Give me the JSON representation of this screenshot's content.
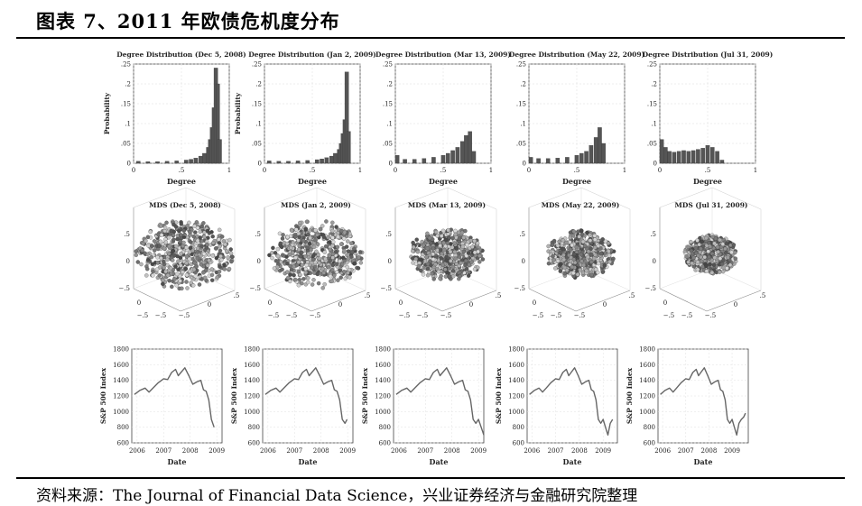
{
  "figure": {
    "title": "图表 7、2011 年欧债危机度分布",
    "source": "资料来源：The Journal of Financial Data Science，兴业证券经济与金融研究院整理"
  },
  "chart_data": [
    {
      "type": "bar",
      "title": "Degree Distribution (Dec 5, 2008)",
      "xlabel": "Degree",
      "ylabel": "Probability",
      "xlim": [
        0,
        1
      ],
      "ylim": [
        0,
        0.25
      ],
      "xticks": [
        0,
        0.5,
        1
      ],
      "yticks": [
        0,
        0.05,
        0.1,
        0.15,
        0.2,
        0.25
      ],
      "x": [
        0.05,
        0.15,
        0.25,
        0.35,
        0.45,
        0.55,
        0.6,
        0.65,
        0.7,
        0.74,
        0.78,
        0.8,
        0.82,
        0.84,
        0.86,
        0.88,
        0.9
      ],
      "values": [
        0.005,
        0.004,
        0.004,
        0.005,
        0.006,
        0.008,
        0.01,
        0.013,
        0.018,
        0.025,
        0.04,
        0.06,
        0.09,
        0.14,
        0.24,
        0.2,
        0.06
      ]
    },
    {
      "type": "bar",
      "title": "Degree Distribution (Jan 2, 2009)",
      "xlabel": "Degree",
      "ylabel": "Probability",
      "xlim": [
        0,
        1
      ],
      "ylim": [
        0,
        0.25
      ],
      "xticks": [
        0,
        0.5,
        1
      ],
      "yticks": [
        0,
        0.05,
        0.1,
        0.15,
        0.2,
        0.25
      ],
      "x": [
        0.05,
        0.15,
        0.25,
        0.35,
        0.45,
        0.55,
        0.6,
        0.65,
        0.7,
        0.74,
        0.78,
        0.8,
        0.82,
        0.84,
        0.86,
        0.88
      ],
      "values": [
        0.006,
        0.005,
        0.005,
        0.006,
        0.007,
        0.009,
        0.011,
        0.014,
        0.018,
        0.025,
        0.035,
        0.05,
        0.075,
        0.11,
        0.23,
        0.08
      ]
    },
    {
      "type": "bar",
      "title": "Degree Distribution (Mar 13, 2009)",
      "xlabel": "Degree",
      "ylabel": "",
      "xlim": [
        0,
        1
      ],
      "ylim": [
        0,
        0.25
      ],
      "xticks": [
        0,
        0.5,
        1
      ],
      "yticks": [
        0,
        0.05,
        0.1,
        0.15,
        0.2,
        0.25
      ],
      "x": [
        0.02,
        0.1,
        0.2,
        0.3,
        0.4,
        0.5,
        0.55,
        0.6,
        0.65,
        0.7,
        0.74,
        0.78,
        0.82
      ],
      "values": [
        0.02,
        0.01,
        0.01,
        0.012,
        0.015,
        0.02,
        0.025,
        0.032,
        0.04,
        0.055,
        0.07,
        0.08,
        0.03
      ]
    },
    {
      "type": "bar",
      "title": "Degree Distribution (May 22, 2009)",
      "xlabel": "Degree",
      "ylabel": "",
      "xlim": [
        0,
        1
      ],
      "ylim": [
        0,
        0.25
      ],
      "xticks": [
        0,
        0.5,
        1
      ],
      "yticks": [
        0,
        0.05,
        0.1,
        0.15,
        0.2,
        0.25
      ],
      "x": [
        0.02,
        0.1,
        0.2,
        0.3,
        0.4,
        0.5,
        0.55,
        0.6,
        0.65,
        0.7,
        0.74,
        0.78
      ],
      "values": [
        0.015,
        0.012,
        0.012,
        0.013,
        0.015,
        0.02,
        0.025,
        0.03,
        0.045,
        0.065,
        0.09,
        0.05
      ]
    },
    {
      "type": "bar",
      "title": "Degree Distribution (Jul 31, 2009)",
      "xlabel": "Degree",
      "ylabel": "",
      "xlim": [
        0,
        1
      ],
      "ylim": [
        0,
        0.25
      ],
      "xticks": [
        0,
        0.5,
        1
      ],
      "yticks": [
        0,
        0.05,
        0.1,
        0.15,
        0.2,
        0.25
      ],
      "x": [
        0.02,
        0.06,
        0.1,
        0.15,
        0.2,
        0.25,
        0.3,
        0.35,
        0.4,
        0.45,
        0.5,
        0.55,
        0.6,
        0.65
      ],
      "values": [
        0.06,
        0.04,
        0.03,
        0.028,
        0.03,
        0.032,
        0.03,
        0.032,
        0.035,
        0.038,
        0.045,
        0.04,
        0.03,
        0.008
      ]
    },
    {
      "type": "scatter",
      "title": "MDS (Dec 5, 2008)",
      "xticks": [
        -0.5,
        0,
        0.5
      ],
      "yticks": [
        -0.5,
        0,
        0.5
      ],
      "zticks": [
        -0.5,
        0,
        0.5
      ],
      "radius": 0.95
    },
    {
      "type": "scatter",
      "title": "MDS (Jan 2, 2009)",
      "xticks": [
        -0.5,
        0,
        0.5
      ],
      "yticks": [
        -0.5,
        0,
        0.5
      ],
      "zticks": [
        -0.5,
        0,
        0.5
      ],
      "radius": 0.92
    },
    {
      "type": "scatter",
      "title": "MDS (Mar 13, 2009)",
      "xticks": [
        -0.5,
        0,
        0.5
      ],
      "yticks": [
        -0.5,
        0,
        0.5
      ],
      "zticks": [
        -0.5,
        0,
        0.5
      ],
      "radius": 0.72
    },
    {
      "type": "scatter",
      "title": "MDS (May 22, 2009)",
      "xticks": [
        -0.5,
        0,
        0.5
      ],
      "yticks": [
        -0.5,
        0,
        0.5
      ],
      "zticks": [
        -0.5,
        0,
        0.5
      ],
      "radius": 0.66
    },
    {
      "type": "scatter",
      "title": "MDS (Jul 31, 2009)",
      "xticks": [
        -0.5,
        0,
        0.5
      ],
      "yticks": [
        -0.5,
        0,
        0.5
      ],
      "zticks": [
        -0.5,
        0,
        0.5
      ],
      "radius": 0.52
    },
    {
      "type": "line",
      "title": "",
      "xlabel": "Date",
      "ylabel": "S&P 500 Index",
      "xlim": [
        2005.8,
        2009.2
      ],
      "ylim": [
        600,
        1800
      ],
      "xticks": [
        2006,
        2007,
        2008,
        2009
      ],
      "yticks": [
        600,
        800,
        1000,
        1200,
        1400,
        1600,
        1800
      ],
      "x": [
        2005.9,
        2006.1,
        2006.3,
        2006.45,
        2006.6,
        2006.8,
        2007.0,
        2007.15,
        2007.3,
        2007.45,
        2007.55,
        2007.65,
        2007.8,
        2007.95,
        2008.1,
        2008.25,
        2008.4,
        2008.5,
        2008.6,
        2008.7,
        2008.8,
        2008.9
      ],
      "values": [
        1220,
        1270,
        1300,
        1250,
        1300,
        1370,
        1420,
        1410,
        1500,
        1540,
        1460,
        1500,
        1560,
        1460,
        1350,
        1380,
        1400,
        1280,
        1260,
        1150,
        900,
        800
      ]
    },
    {
      "type": "line",
      "title": "",
      "xlabel": "Date",
      "ylabel": "S&P 500 Index",
      "xlim": [
        2005.8,
        2009.2
      ],
      "ylim": [
        600,
        1800
      ],
      "xticks": [
        2006,
        2007,
        2008,
        2009
      ],
      "yticks": [
        600,
        800,
        1000,
        1200,
        1400,
        1600,
        1800
      ],
      "x": [
        2005.9,
        2006.1,
        2006.3,
        2006.45,
        2006.6,
        2006.8,
        2007.0,
        2007.15,
        2007.3,
        2007.45,
        2007.55,
        2007.65,
        2007.8,
        2007.95,
        2008.1,
        2008.25,
        2008.4,
        2008.5,
        2008.6,
        2008.7,
        2008.8,
        2008.9,
        2008.98
      ],
      "values": [
        1220,
        1270,
        1300,
        1250,
        1300,
        1370,
        1420,
        1410,
        1500,
        1540,
        1460,
        1500,
        1560,
        1460,
        1350,
        1380,
        1400,
        1280,
        1260,
        1150,
        900,
        850,
        900
      ]
    },
    {
      "type": "line",
      "title": "",
      "xlabel": "Date",
      "ylabel": "S&P 500 Index",
      "xlim": [
        2005.8,
        2009.2
      ],
      "ylim": [
        600,
        1800
      ],
      "xticks": [
        2006,
        2007,
        2008,
        2009
      ],
      "yticks": [
        600,
        800,
        1000,
        1200,
        1400,
        1600,
        1800
      ],
      "x": [
        2005.9,
        2006.1,
        2006.3,
        2006.45,
        2006.6,
        2006.8,
        2007.0,
        2007.15,
        2007.3,
        2007.45,
        2007.55,
        2007.65,
        2007.8,
        2007.95,
        2008.1,
        2008.25,
        2008.4,
        2008.5,
        2008.6,
        2008.7,
        2008.8,
        2008.9,
        2009.0,
        2009.1,
        2009.2
      ],
      "values": [
        1220,
        1270,
        1300,
        1250,
        1300,
        1370,
        1420,
        1410,
        1500,
        1540,
        1460,
        1500,
        1560,
        1460,
        1350,
        1380,
        1400,
        1280,
        1260,
        1150,
        900,
        850,
        900,
        800,
        700
      ]
    },
    {
      "type": "line",
      "title": "",
      "xlabel": "Date",
      "ylabel": "S&P 500 Index",
      "xlim": [
        2005.8,
        2009.6
      ],
      "ylim": [
        600,
        1800
      ],
      "xticks": [
        2006,
        2007,
        2008,
        2009
      ],
      "yticks": [
        600,
        800,
        1000,
        1200,
        1400,
        1600,
        1800
      ],
      "x": [
        2005.9,
        2006.1,
        2006.3,
        2006.45,
        2006.6,
        2006.8,
        2007.0,
        2007.15,
        2007.3,
        2007.45,
        2007.55,
        2007.65,
        2007.8,
        2007.95,
        2008.1,
        2008.25,
        2008.4,
        2008.5,
        2008.6,
        2008.7,
        2008.8,
        2008.9,
        2009.0,
        2009.1,
        2009.2,
        2009.3,
        2009.4
      ],
      "values": [
        1220,
        1270,
        1300,
        1250,
        1300,
        1370,
        1420,
        1410,
        1500,
        1540,
        1460,
        1500,
        1560,
        1460,
        1350,
        1380,
        1400,
        1280,
        1260,
        1150,
        900,
        850,
        900,
        800,
        700,
        850,
        900
      ]
    },
    {
      "type": "line",
      "title": "",
      "xlabel": "Date",
      "ylabel": "S&P 500 Index",
      "xlim": [
        2005.8,
        2009.7
      ],
      "ylim": [
        600,
        1800
      ],
      "xticks": [
        2006,
        2007,
        2008,
        2009
      ],
      "yticks": [
        600,
        800,
        1000,
        1200,
        1400,
        1600,
        1800
      ],
      "x": [
        2005.9,
        2006.1,
        2006.3,
        2006.45,
        2006.6,
        2006.8,
        2007.0,
        2007.15,
        2007.3,
        2007.45,
        2007.55,
        2007.65,
        2007.8,
        2007.95,
        2008.1,
        2008.25,
        2008.4,
        2008.5,
        2008.6,
        2008.7,
        2008.8,
        2008.9,
        2009.0,
        2009.1,
        2009.2,
        2009.3,
        2009.4,
        2009.5,
        2009.58
      ],
      "values": [
        1220,
        1270,
        1300,
        1250,
        1300,
        1370,
        1420,
        1410,
        1500,
        1540,
        1460,
        1500,
        1560,
        1460,
        1350,
        1380,
        1400,
        1280,
        1260,
        1150,
        900,
        850,
        900,
        800,
        700,
        850,
        900,
        930,
        980
      ]
    }
  ]
}
